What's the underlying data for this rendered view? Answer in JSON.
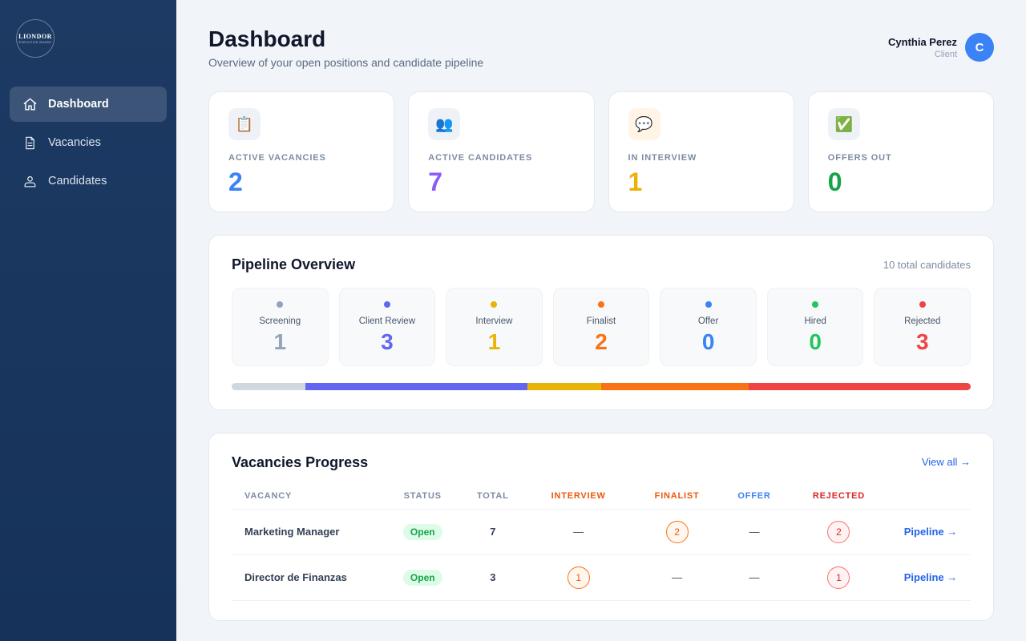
{
  "sidebar": {
    "logo": {
      "name": "LIONDOR",
      "sub": "EXECUTIVE BOARD"
    },
    "items": [
      {
        "label": "Dashboard",
        "icon": "home-icon",
        "active": true
      },
      {
        "label": "Vacancies",
        "icon": "document-icon",
        "active": false
      },
      {
        "label": "Candidates",
        "icon": "user-icon",
        "active": false
      }
    ]
  },
  "header": {
    "title": "Dashboard",
    "subtitle": "Overview of your open positions and candidate pipeline"
  },
  "user": {
    "name": "Cynthia Perez",
    "role": "Client",
    "initial": "C",
    "avatar_color": "#3b82f6"
  },
  "stats": [
    {
      "label": "ACTIVE VACANCIES",
      "value": "2",
      "icon": "clipboard-icon",
      "glyph": "📋",
      "color": "#3b82f6",
      "icon_bg": "#eef2f7"
    },
    {
      "label": "ACTIVE CANDIDATES",
      "value": "7",
      "icon": "people-icon",
      "glyph": "👥",
      "color": "#8b5cf6",
      "icon_bg": "#eef2f7"
    },
    {
      "label": "IN INTERVIEW",
      "value": "1",
      "icon": "speech-bubble-icon",
      "glyph": "💬",
      "color": "#eab308",
      "icon_bg": "#fff4e6"
    },
    {
      "label": "OFFERS OUT",
      "value": "0",
      "icon": "check-icon",
      "glyph": "✅",
      "color": "#16a34a",
      "icon_bg": "#eef2f7"
    }
  ],
  "pipeline": {
    "title": "Pipeline Overview",
    "total": "10 total candidates",
    "stages": [
      {
        "label": "Screening",
        "count": "1",
        "fraction": 0.1,
        "color": "#94a3b8"
      },
      {
        "label": "Client Review",
        "count": "3",
        "fraction": 0.3,
        "color": "#6366f1"
      },
      {
        "label": "Interview",
        "count": "1",
        "fraction": 0.1,
        "color": "#eab308"
      },
      {
        "label": "Finalist",
        "count": "2",
        "fraction": 0.2,
        "color": "#f97316"
      },
      {
        "label": "Offer",
        "count": "0",
        "fraction": 0.0,
        "color": "#3b82f6"
      },
      {
        "label": "Hired",
        "count": "0",
        "fraction": 0.0,
        "color": "#22c55e"
      },
      {
        "label": "Rejected",
        "count": "3",
        "fraction": 0.3,
        "color": "#ef4444"
      }
    ]
  },
  "vacancies": {
    "title": "Vacancies Progress",
    "view_all": "View all →",
    "columns": [
      {
        "label": "VACANCY",
        "color": "#7d8ca1"
      },
      {
        "label": "STATUS",
        "color": "#7d8ca1"
      },
      {
        "label": "TOTAL",
        "color": "#7d8ca1"
      },
      {
        "label": "INTERVIEW",
        "color": "#ea580c"
      },
      {
        "label": "FINALIST",
        "color": "#ea580c"
      },
      {
        "label": "OFFER",
        "color": "#3b82f6"
      },
      {
        "label": "REJECTED",
        "color": "#dc2626"
      },
      {
        "label": "",
        "color": "#7d8ca1"
      }
    ],
    "rows": [
      {
        "name": "Marketing Manager",
        "status": "Open",
        "total": "7",
        "interview": "—",
        "finalist": "2",
        "offer": "—",
        "rejected": "2",
        "link": "Pipeline →"
      },
      {
        "name": "Director de Finanzas",
        "status": "Open",
        "total": "3",
        "interview": "1",
        "finalist": "—",
        "offer": "—",
        "rejected": "1",
        "link": "Pipeline →"
      }
    ]
  }
}
